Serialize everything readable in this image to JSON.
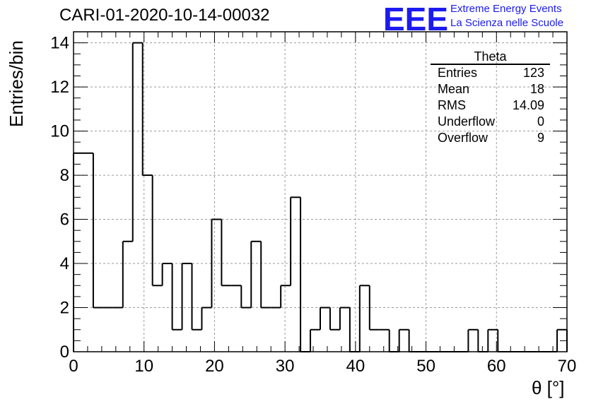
{
  "title": "CARI-01-2020-10-14-00032",
  "logo": {
    "mark": "EEE",
    "line1": "Extreme Energy Events",
    "line2": "La Scienza nelle Scuole",
    "color": "#1b1bf0"
  },
  "stats": {
    "name": "Theta",
    "rows": [
      {
        "label": "Entries",
        "value": "123"
      },
      {
        "label": "Mean",
        "value": "18"
      },
      {
        "label": "RMS",
        "value": "14.09"
      },
      {
        "label": "Underflow",
        "value": "0"
      },
      {
        "label": "Overflow",
        "value": "9"
      }
    ]
  },
  "chart_data": {
    "type": "bar",
    "title": "CARI-01-2020-10-14-00032",
    "xlabel": "θ [°]",
    "ylabel": "Entries/bin",
    "xlim": [
      0,
      70
    ],
    "ylim": [
      0,
      14.5
    ],
    "xticks": [
      "0",
      "10",
      "20",
      "30",
      "40",
      "50",
      "60",
      "70"
    ],
    "yticks": [
      "0",
      "2",
      "4",
      "6",
      "8",
      "10",
      "12",
      "14"
    ],
    "grid": true,
    "bin_width": 1.4,
    "values": [
      9,
      9,
      2,
      2,
      2,
      5,
      14,
      8,
      3,
      4,
      1,
      4,
      1,
      2,
      6,
      3,
      3,
      2,
      5,
      2,
      2,
      3,
      7,
      0,
      1,
      2,
      1,
      2,
      0,
      3,
      1,
      1,
      0,
      1,
      0,
      0,
      0,
      0,
      0,
      0,
      1,
      0,
      1,
      0,
      0,
      0,
      0,
      0,
      0,
      1
    ]
  }
}
